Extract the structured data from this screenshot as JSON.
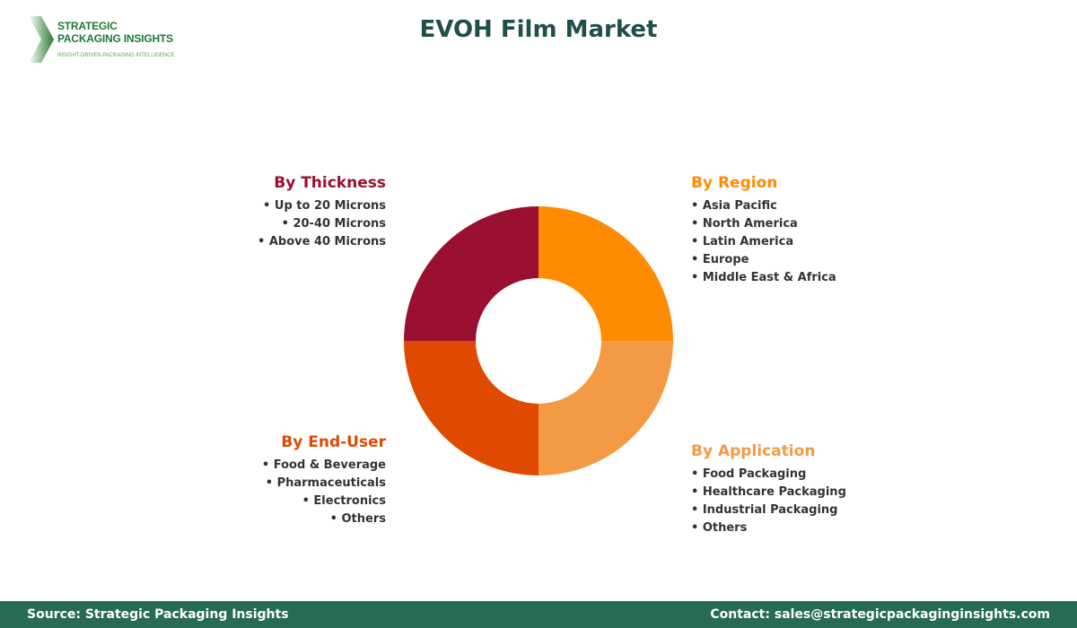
{
  "logo": {
    "line1": "STRATEGIC",
    "line2": "PACKAGING INSIGHTS",
    "tagline": "INSIGHT-DRIVEN PACKAGING INTELLIGENCE"
  },
  "title": "EVOH Film Market",
  "chart_data": {
    "type": "pie",
    "donut": true,
    "title": "EVOH Film Market",
    "segments": [
      {
        "name": "By Region",
        "value": 25,
        "color": "#ff8c00",
        "items": [
          "Asia Pacific",
          "North America",
          "Latin America",
          "Europe",
          "Middle East & Africa"
        ]
      },
      {
        "name": "By Application",
        "value": 25,
        "color": "#f49a45",
        "items": [
          "Food Packaging",
          "Healthcare Packaging",
          "Industrial Packaging",
          "Others"
        ]
      },
      {
        "name": "By End-User",
        "value": 25,
        "color": "#e04a00",
        "items": [
          "Food & Beverage",
          "Pharmaceuticals",
          "Electronics",
          "Others"
        ]
      },
      {
        "name": "By Thickness",
        "value": 25,
        "color": "#9b1030",
        "items": [
          "Up to 20 Microns",
          "20-40 Microns",
          "Above 40 Microns"
        ]
      }
    ]
  },
  "footer": {
    "source": "Source: Strategic Packaging Insights",
    "contact": "Contact: sales@strategicpackaginginsights.com"
  }
}
